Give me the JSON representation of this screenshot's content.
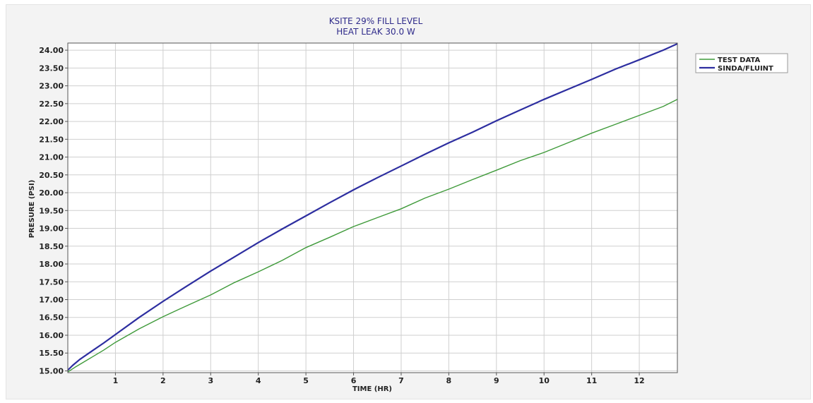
{
  "chart_data": {
    "type": "line",
    "title": "KSITE 29% FILL LEVEL",
    "subtitle": "HEAT LEAK 30.0 W",
    "xlabel": "TIME (HR)",
    "ylabel": "PRESURE (PSI)",
    "xlim": [
      0,
      12.8
    ],
    "ylim": [
      14.95,
      24.2
    ],
    "xticks": [
      "1",
      "2",
      "3",
      "4",
      "5",
      "6",
      "7",
      "8",
      "9",
      "10",
      "11",
      "12"
    ],
    "yticks": [
      "15.00",
      "15.50",
      "16.00",
      "16.50",
      "17.00",
      "17.50",
      "18.00",
      "18.50",
      "19.00",
      "19.50",
      "20.00",
      "20.50",
      "21.00",
      "21.50",
      "22.00",
      "22.50",
      "23.00",
      "23.50",
      "24.00"
    ],
    "grid": true,
    "legend_position": "top-right-outside",
    "series": [
      {
        "name": "TEST DATA",
        "color": "#3f9a3a",
        "x": [
          0,
          0.15,
          0.3,
          0.5,
          0.75,
          1.0,
          1.5,
          2.0,
          2.5,
          3.0,
          3.5,
          4.0,
          4.5,
          5.0,
          5.5,
          6.0,
          6.5,
          7.0,
          7.5,
          8.0,
          8.5,
          9.0,
          9.5,
          10.0,
          10.5,
          11.0,
          11.5,
          12.0,
          12.5,
          12.8
        ],
        "y": [
          14.97,
          15.1,
          15.22,
          15.38,
          15.58,
          15.8,
          16.18,
          16.52,
          16.83,
          17.13,
          17.48,
          17.78,
          18.1,
          18.46,
          18.75,
          19.05,
          19.3,
          19.55,
          19.85,
          20.1,
          20.37,
          20.63,
          20.9,
          21.13,
          21.4,
          21.67,
          21.92,
          22.17,
          22.42,
          22.62
        ]
      },
      {
        "name": "SINDA/FLUINT",
        "color": "#2d2ea0",
        "x": [
          0,
          0.1,
          0.25,
          0.5,
          0.75,
          1.0,
          1.5,
          2.0,
          2.5,
          3.0,
          3.5,
          4.0,
          4.5,
          5.0,
          5.5,
          6.0,
          6.5,
          7.0,
          7.5,
          8.0,
          8.5,
          9.0,
          9.5,
          10.0,
          10.5,
          11.0,
          11.5,
          12.0,
          12.5,
          12.8
        ],
        "y": [
          15.02,
          15.15,
          15.32,
          15.55,
          15.78,
          16.02,
          16.5,
          16.95,
          17.38,
          17.8,
          18.2,
          18.6,
          18.98,
          19.35,
          19.72,
          20.08,
          20.42,
          20.75,
          21.08,
          21.4,
          21.7,
          22.02,
          22.32,
          22.62,
          22.9,
          23.18,
          23.47,
          23.73,
          24.0,
          24.18
        ]
      }
    ]
  }
}
